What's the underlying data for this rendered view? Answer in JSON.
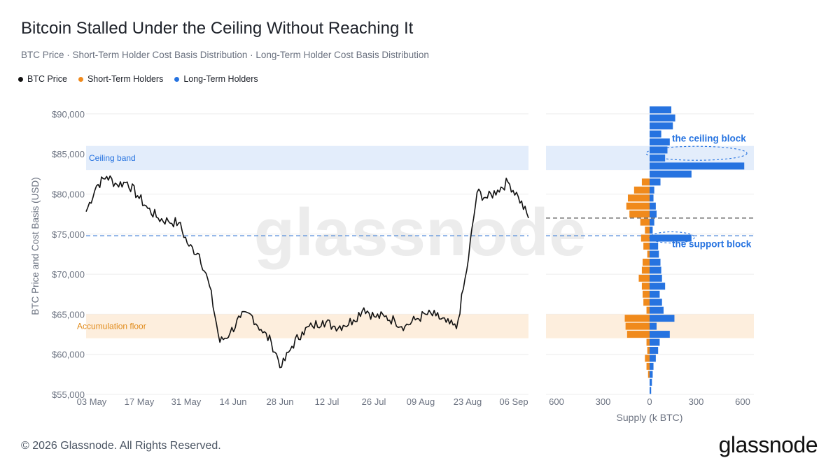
{
  "header": {
    "title": "Bitcoin Stalled Under the Ceiling Without Reaching It",
    "subtitle": "BTC Price · Short-Term Holder Cost Basis Distribution · Long-Term Holder Cost Basis Distribution"
  },
  "legend": [
    {
      "label": "BTC Price",
      "color": "#111111"
    },
    {
      "label": "Short-Term Holders",
      "color": "#f08a1c"
    },
    {
      "label": "Long-Term Holders",
      "color": "#2673e0"
    }
  ],
  "footer": {
    "copyright": "© 2026 Glassnode. All Rights Reserved.",
    "brand": "glassnode"
  },
  "watermark": "glassnode",
  "chart_data": [
    {
      "type": "line",
      "ylabel": "BTC Price and Cost Basis (USD)",
      "ylim": [
        55000,
        92000
      ],
      "y_ticks": [
        "$55,000",
        "$60,000",
        "$65,000",
        "$70,000",
        "$75,000",
        "$80,000",
        "$85,000",
        "$90,000"
      ],
      "x_ticks": [
        "03 May",
        "17 May",
        "31 May",
        "14 Jun",
        "28 Jun",
        "12 Jul",
        "26 Jul",
        "09 Aug",
        "23 Aug",
        "06 Sep"
      ],
      "bands": [
        {
          "label": "Ceiling band",
          "from": 83000,
          "to": 86000,
          "color": "#e3edfb",
          "label_color": "#2673e0"
        },
        {
          "label": "Accumulation floor",
          "from": 62000,
          "to": 65000,
          "color": "#fdeedd",
          "label_color": "#e08a1a"
        }
      ],
      "reference_line": {
        "value": 74800,
        "color": "#4a86d9",
        "style": "dashed"
      },
      "series": [
        {
          "name": "BTC Price",
          "color": "#111111",
          "x": [
            "03 May",
            "06 May",
            "09 May",
            "12 May",
            "15 May",
            "18 May",
            "21 May",
            "24 May",
            "27 May",
            "30 May",
            "02 Jun",
            "05 Jun",
            "08 Jun",
            "11 Jun",
            "14 Jun",
            "17 Jun",
            "20 Jun",
            "23 Jun",
            "26 Jun",
            "29 Jun",
            "02 Jul",
            "05 Jul",
            "08 Jul",
            "11 Jul",
            "14 Jul",
            "17 Jul",
            "20 Jul",
            "23 Jul",
            "26 Jul",
            "29 Jul",
            "01 Aug",
            "04 Aug",
            "07 Aug",
            "10 Aug",
            "13 Aug",
            "16 Aug",
            "19 Aug",
            "22 Aug",
            "25 Aug",
            "28 Aug",
            "31 Aug",
            "03 Sep",
            "06 Sep",
            "09 Sep"
          ],
          "values": [
            77800,
            81000,
            82200,
            81200,
            81500,
            79800,
            78200,
            77000,
            76600,
            76400,
            73500,
            72500,
            68500,
            61500,
            62700,
            64600,
            65000,
            63100,
            61500,
            58400,
            61000,
            62800,
            63500,
            64200,
            63500,
            63600,
            64300,
            65800,
            64700,
            64700,
            64200,
            63500,
            64300,
            65000,
            64800,
            64000,
            63200,
            70500,
            80200,
            79500,
            80500,
            81500,
            79700,
            77000
          ]
        }
      ]
    },
    {
      "type": "bar",
      "orientation": "horizontal",
      "xlabel": "Supply (k BTC)",
      "x_ticks": [
        "600",
        "300",
        "0",
        "300",
        "600"
      ],
      "price_line": {
        "value": 77000,
        "color": "#555555",
        "style": "dashed"
      },
      "reference_line": {
        "value": 74800,
        "color": "#4a86d9",
        "style": "dashed"
      },
      "bands": [
        {
          "from": 83000,
          "to": 86000,
          "color": "#e3edfb"
        },
        {
          "from": 62000,
          "to": 65000,
          "color": "#fdeedd"
        }
      ],
      "annotations": [
        {
          "text": "the ceiling block",
          "price": 87000,
          "color": "#2673e0"
        },
        {
          "text": "the support block",
          "price": 73800,
          "color": "#2673e0"
        }
      ],
      "categories": [
        90500,
        89500,
        88500,
        87500,
        86500,
        85500,
        84500,
        83500,
        82500,
        81500,
        80500,
        79500,
        78500,
        77500,
        76500,
        75500,
        74500,
        73500,
        72500,
        71500,
        70500,
        69500,
        68500,
        67500,
        66500,
        65500,
        64500,
        63500,
        62500,
        61500,
        60500,
        59500,
        58500,
        57500,
        56500,
        55500
      ],
      "series": [
        {
          "name": "Short-Term Holders",
          "color": "#f08a1c",
          "values": [
            0,
            0,
            0,
            0,
            0,
            0,
            0,
            0,
            0,
            50,
            100,
            140,
            150,
            130,
            60,
            30,
            55,
            40,
            15,
            45,
            50,
            70,
            50,
            45,
            40,
            20,
            160,
            155,
            145,
            20,
            15,
            30,
            20,
            10,
            0,
            0
          ]
        },
        {
          "name": "Long-Term Holders",
          "color": "#2673e0",
          "values": [
            140,
            165,
            150,
            75,
            130,
            115,
            100,
            610,
            270,
            70,
            30,
            25,
            40,
            45,
            30,
            20,
            270,
            55,
            60,
            70,
            75,
            80,
            100,
            65,
            80,
            90,
            160,
            45,
            130,
            65,
            55,
            40,
            25,
            20,
            15,
            10
          ]
        }
      ]
    }
  ]
}
